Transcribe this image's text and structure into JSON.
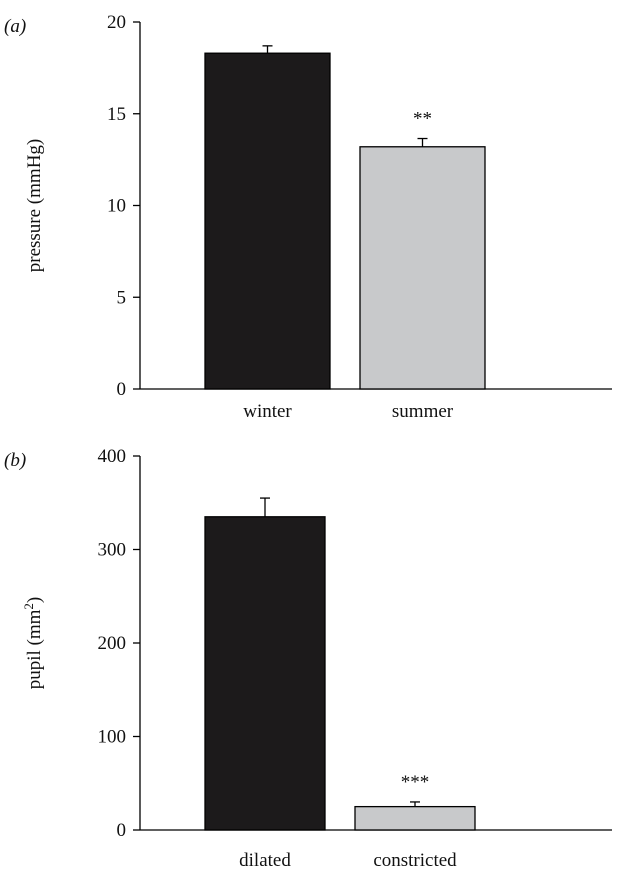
{
  "chart_data": [
    {
      "type": "bar",
      "panel_label": "(a)",
      "categories": [
        "winter",
        "summer"
      ],
      "values": [
        18.3,
        13.2
      ],
      "errors": [
        0.4,
        0.45
      ],
      "significance": [
        "",
        "**"
      ],
      "colors": [
        "#1c1a1b",
        "#c8c9cb"
      ],
      "ylabel": "pressure (mmHg)",
      "ylim": [
        0,
        20
      ],
      "yticks": [
        0,
        5,
        10,
        15,
        20
      ],
      "grid": false
    },
    {
      "type": "bar",
      "panel_label": "(b)",
      "categories": [
        "dilated",
        "constricted"
      ],
      "values": [
        335,
        25
      ],
      "errors": [
        20,
        5
      ],
      "significance": [
        "",
        "***"
      ],
      "colors": [
        "#1c1a1b",
        "#c8c9cb"
      ],
      "ylabel_text": "pupil (mm",
      "ylabel_sup": "2",
      "ylabel_close": ")",
      "ylim": [
        0,
        400
      ],
      "yticks": [
        0,
        100,
        200,
        300,
        400
      ],
      "grid": false
    }
  ]
}
